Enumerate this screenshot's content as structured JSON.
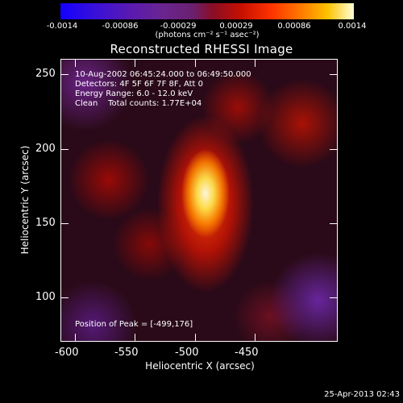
{
  "colorbar": {
    "ticks": [
      "-0.0014",
      "-0.00086",
      "-0.00029",
      "0.00029",
      "0.00086",
      "0.0014"
    ],
    "units": "(photons cm⁻² s⁻¹ asec⁻²)"
  },
  "title": "Reconstructed RHESSI Image",
  "image_info": {
    "time_range": "10-Aug-2002 06:45:24.000 to 06:49:50.000",
    "detectors": "Detectors: 4F 5F 6F 7F 8F, Att 0",
    "energy": "Energy Range: 6.0 - 12.0 keV",
    "clean": "Clean    Total counts: 1.77E+04",
    "peak": "Position of Peak = [-499,176]"
  },
  "axes": {
    "xlabel": "Heliocentric X (arcsec)",
    "ylabel": "Heliocentric Y (arcsec)",
    "xticks": [
      "-600",
      "-550",
      "-500",
      "-450"
    ],
    "yticks": [
      "250",
      "200",
      "150",
      "100"
    ]
  },
  "footer": {
    "timestamp": "25-Apr-2013 02:43"
  }
}
